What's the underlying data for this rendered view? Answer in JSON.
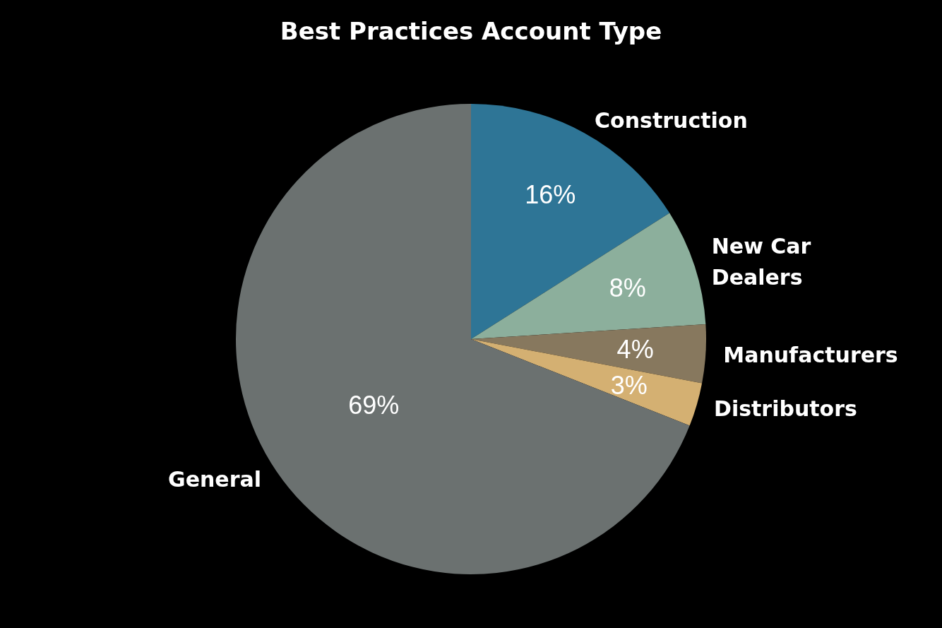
{
  "chart_data": {
    "type": "pie",
    "title": "Best Practices Account Type",
    "categories": [
      "Construction",
      "New Car\nDealers",
      "Manufacturers",
      "Distributors",
      "General"
    ],
    "values": [
      16,
      8,
      4,
      3,
      69
    ],
    "value_labels": [
      "16%",
      "8%",
      "4%",
      "3%",
      "69%"
    ],
    "colors": [
      "#2e7596",
      "#8caf9c",
      "#87785e",
      "#d4b072",
      "#6b7170"
    ],
    "legend": false
  }
}
